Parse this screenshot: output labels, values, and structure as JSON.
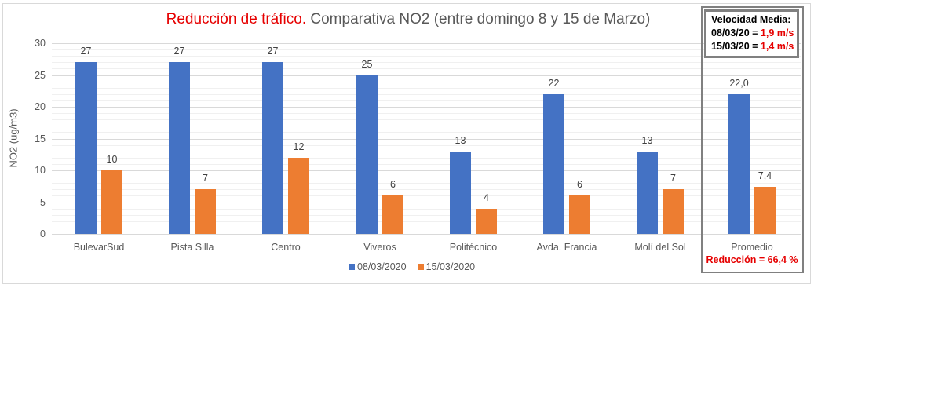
{
  "chart_data": {
    "type": "bar",
    "title": "Reducción de tráfico. Comparativa NO2 (entre domingo 8 y 15 de Marzo)",
    "title_parts": {
      "highlight": "Reducción de tráfico.",
      "rest": " Comparativa NO2 (entre domingo 8 y 15 de Marzo)"
    },
    "xlabel": "",
    "ylabel": "NO2 (ug/m3)",
    "ylim": [
      0,
      30
    ],
    "yticks": [
      "0",
      "5",
      "10",
      "15",
      "20",
      "25",
      "30"
    ],
    "grid": true,
    "legend_position": "bottom",
    "categories": [
      "BulevarSud",
      "Pista Silla",
      "Centro",
      "Viveros",
      "Politécnico",
      "Avda. Francia",
      "Molí del Sol",
      "Promedio"
    ],
    "series": [
      {
        "name": "08/03/2020",
        "color": "#4472c4",
        "values": [
          27,
          27,
          27,
          25,
          13,
          22,
          13,
          22.0
        ],
        "labels": [
          "27",
          "27",
          "27",
          "25",
          "13",
          "22",
          "13",
          "22,0"
        ]
      },
      {
        "name": "15/03/2020",
        "color": "#ed7d31",
        "values": [
          10,
          7,
          12,
          6,
          4,
          6,
          7,
          7.4
        ],
        "labels": [
          "10",
          "7",
          "12",
          "6",
          "4",
          "6",
          "7",
          "7,4"
        ]
      }
    ],
    "annotations": {
      "speed_box": {
        "heading": "Velocidad Media:",
        "rows": [
          {
            "date": "08/03/20 = ",
            "value": "1,9 m/s"
          },
          {
            "date": "15/03/20 = ",
            "value": "1,4 m/s"
          }
        ]
      },
      "reduction": "Reducción = 66,4 %"
    }
  }
}
